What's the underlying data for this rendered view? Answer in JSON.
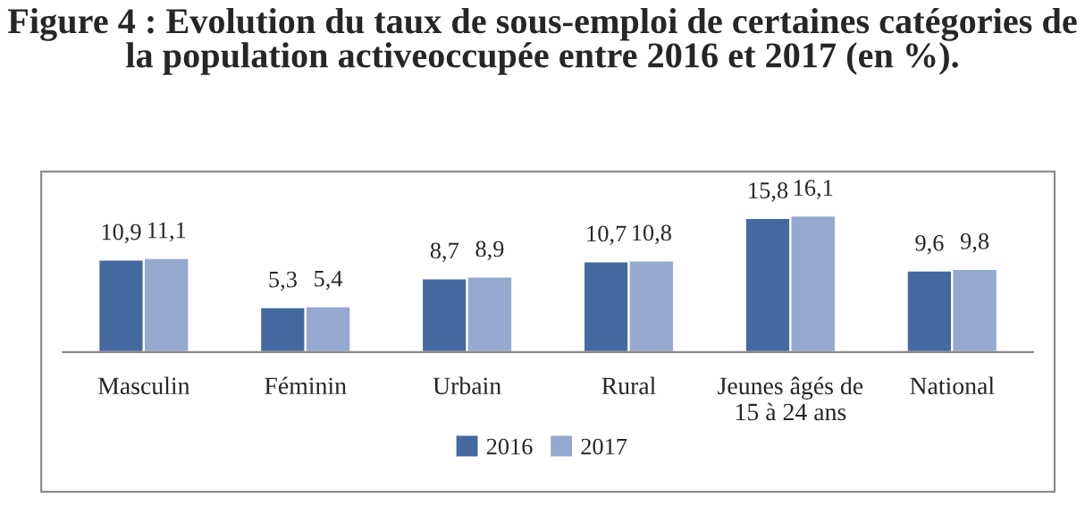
{
  "chart_data": {
    "type": "bar",
    "title": "Figure 4 : Evolution du taux de sous-emploi de certaines catégories de la population activeoccupée entre 2016 et 2017 (en %).",
    "categories": [
      "Masculin",
      "Féminin",
      "Urbain",
      "Rural",
      "Jeunes âgés de\n15 à 24 ans",
      "National"
    ],
    "series": [
      {
        "name": "2016",
        "color": "#44699f",
        "values": [
          10.9,
          5.3,
          8.7,
          10.7,
          15.8,
          9.6
        ],
        "value_labels": [
          "10,9",
          "5,3",
          "8,7",
          "10,7",
          "15,8",
          "9,6"
        ]
      },
      {
        "name": "2017",
        "color": "#95a9d0",
        "values": [
          11.1,
          5.4,
          8.9,
          10.8,
          16.1,
          9.8
        ],
        "value_labels": [
          "11,1",
          "5,4",
          "8,9",
          "10,8",
          "16,1",
          "9,8"
        ]
      }
    ],
    "legend": "bottom",
    "grid": false
  }
}
